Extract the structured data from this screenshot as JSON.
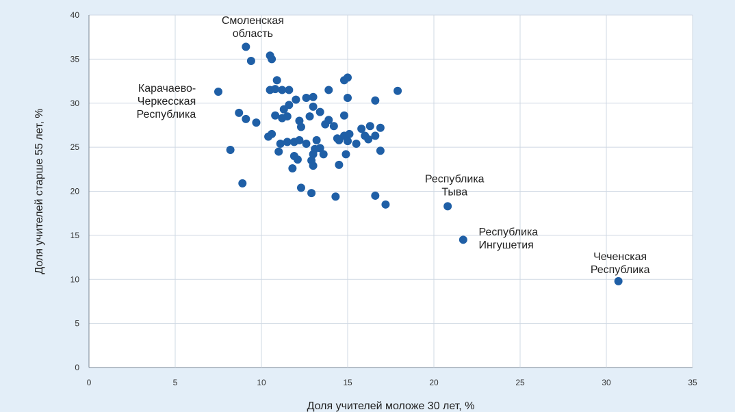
{
  "colors": {
    "background": "#e3eef8",
    "plot_background": "#ffffff",
    "grid": "#cfd8e3",
    "axis": "#7a8794",
    "point": "#1f5fa6"
  },
  "chart_data": {
    "type": "scatter",
    "xlabel": "Доля учителей моложе 30 лет, %",
    "ylabel": "Доля учителей старше 55 лет, %",
    "xlim": [
      0,
      35
    ],
    "ylim": [
      0,
      40
    ],
    "xticks": [
      "0",
      "5",
      "10",
      "15",
      "20",
      "25",
      "30",
      "35"
    ],
    "yticks": [
      "0",
      "5",
      "10",
      "15",
      "20",
      "25",
      "30",
      "35",
      "40"
    ],
    "grid": true,
    "points": [
      {
        "x": 9.1,
        "y": 36.4
      },
      {
        "x": 9.4,
        "y": 34.8
      },
      {
        "x": 10.5,
        "y": 35.4
      },
      {
        "x": 10.6,
        "y": 35.0
      },
      {
        "x": 7.5,
        "y": 31.3
      },
      {
        "x": 10.5,
        "y": 31.5
      },
      {
        "x": 10.9,
        "y": 32.6
      },
      {
        "x": 10.8,
        "y": 31.6
      },
      {
        "x": 11.2,
        "y": 31.5
      },
      {
        "x": 11.6,
        "y": 31.5
      },
      {
        "x": 12.6,
        "y": 30.6
      },
      {
        "x": 13.0,
        "y": 30.7
      },
      {
        "x": 13.9,
        "y": 31.5
      },
      {
        "x": 14.8,
        "y": 32.6
      },
      {
        "x": 15.0,
        "y": 32.9
      },
      {
        "x": 17.9,
        "y": 31.4
      },
      {
        "x": 15.0,
        "y": 30.6
      },
      {
        "x": 16.6,
        "y": 30.3
      },
      {
        "x": 12.0,
        "y": 30.4
      },
      {
        "x": 11.6,
        "y": 29.8
      },
      {
        "x": 13.0,
        "y": 29.6
      },
      {
        "x": 11.3,
        "y": 29.3
      },
      {
        "x": 8.7,
        "y": 28.9
      },
      {
        "x": 9.1,
        "y": 28.2
      },
      {
        "x": 9.7,
        "y": 27.8
      },
      {
        "x": 10.8,
        "y": 28.6
      },
      {
        "x": 11.2,
        "y": 28.3
      },
      {
        "x": 11.5,
        "y": 28.5
      },
      {
        "x": 12.2,
        "y": 28.0
      },
      {
        "x": 12.8,
        "y": 28.5
      },
      {
        "x": 13.4,
        "y": 29.0
      },
      {
        "x": 13.9,
        "y": 28.1
      },
      {
        "x": 14.8,
        "y": 28.6
      },
      {
        "x": 12.3,
        "y": 27.3
      },
      {
        "x": 13.7,
        "y": 27.6
      },
      {
        "x": 14.2,
        "y": 27.4
      },
      {
        "x": 12.6,
        "y": 25.4
      },
      {
        "x": 15.8,
        "y": 27.1
      },
      {
        "x": 16.3,
        "y": 27.4
      },
      {
        "x": 16.9,
        "y": 27.2
      },
      {
        "x": 10.4,
        "y": 26.2
      },
      {
        "x": 10.6,
        "y": 26.5
      },
      {
        "x": 14.4,
        "y": 26.0
      },
      {
        "x": 14.8,
        "y": 26.3
      },
      {
        "x": 15.1,
        "y": 26.5
      },
      {
        "x": 16.0,
        "y": 26.3
      },
      {
        "x": 16.6,
        "y": 26.3
      },
      {
        "x": 16.2,
        "y": 25.9
      },
      {
        "x": 11.1,
        "y": 25.4
      },
      {
        "x": 11.5,
        "y": 25.6
      },
      {
        "x": 11.9,
        "y": 25.6
      },
      {
        "x": 12.2,
        "y": 25.8
      },
      {
        "x": 13.2,
        "y": 25.8
      },
      {
        "x": 14.5,
        "y": 25.8
      },
      {
        "x": 15.0,
        "y": 25.7
      },
      {
        "x": 15.5,
        "y": 25.4
      },
      {
        "x": 8.2,
        "y": 24.7
      },
      {
        "x": 11.0,
        "y": 24.5
      },
      {
        "x": 13.1,
        "y": 24.8
      },
      {
        "x": 13.4,
        "y": 24.9
      },
      {
        "x": 13.0,
        "y": 24.2
      },
      {
        "x": 13.6,
        "y": 24.2
      },
      {
        "x": 14.9,
        "y": 24.2
      },
      {
        "x": 16.9,
        "y": 24.6
      },
      {
        "x": 11.9,
        "y": 24.0
      },
      {
        "x": 12.1,
        "y": 23.6
      },
      {
        "x": 12.9,
        "y": 23.5
      },
      {
        "x": 14.5,
        "y": 23.0
      },
      {
        "x": 11.8,
        "y": 22.6
      },
      {
        "x": 13.0,
        "y": 22.9
      },
      {
        "x": 8.9,
        "y": 20.9
      },
      {
        "x": 12.3,
        "y": 20.4
      },
      {
        "x": 12.9,
        "y": 19.8
      },
      {
        "x": 14.3,
        "y": 19.4
      },
      {
        "x": 16.6,
        "y": 19.5
      },
      {
        "x": 17.2,
        "y": 18.5
      },
      {
        "x": 20.8,
        "y": 18.3
      },
      {
        "x": 21.7,
        "y": 14.5
      },
      {
        "x": 30.7,
        "y": 9.8
      }
    ],
    "annotations": [
      {
        "lines": [
          "Смоленская",
          "область"
        ],
        "x": 9.5,
        "y": 39.0,
        "anchor": "middle"
      },
      {
        "lines": [
          "Карачаево-",
          "Черкесская",
          "Республика"
        ],
        "x": 6.2,
        "y": 31.3,
        "anchor": "end"
      },
      {
        "lines": [
          "Республика",
          "Тыва"
        ],
        "x": 21.2,
        "y": 21.0,
        "anchor": "middle"
      },
      {
        "lines": [
          "Республика",
          "Ингушетия"
        ],
        "x": 22.6,
        "y": 15.0,
        "anchor": "start"
      },
      {
        "lines": [
          "Чеченская",
          "Республика"
        ],
        "x": 30.8,
        "y": 12.2,
        "anchor": "middle"
      }
    ]
  }
}
